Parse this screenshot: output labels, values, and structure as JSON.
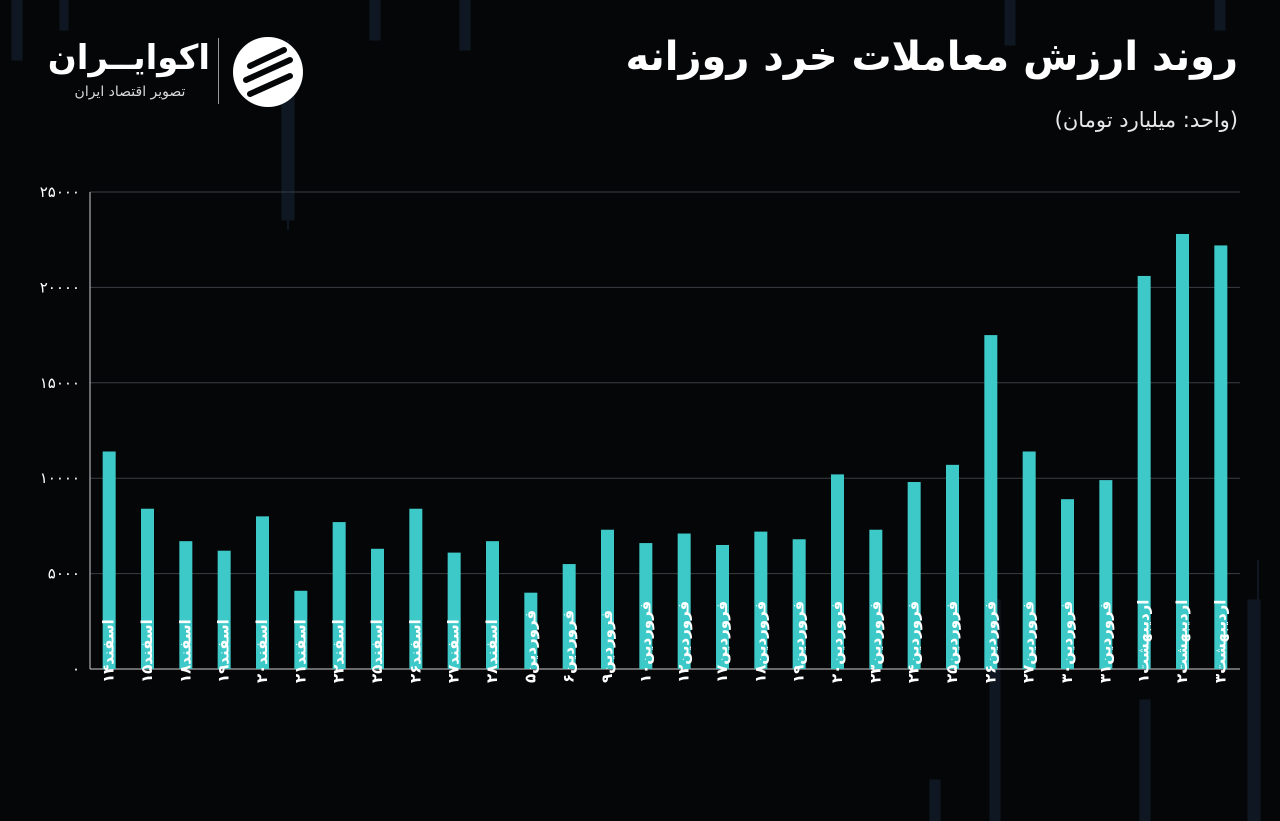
{
  "title": "روند ارزش معاملات خرد روزانه",
  "subtitle": "(واحد: میلیارد تومان)",
  "logo": {
    "name": "اکوایــران",
    "tagline": "تصویر اقتصاد ایران",
    "icon": "ecoiran-logo-icon"
  },
  "colors": {
    "background": "#050608",
    "bar": "#3ec9c9",
    "grid": "#3a3d42",
    "axis": "#cfcfcf"
  },
  "chart_data": {
    "type": "bar",
    "title": "روند ارزش معاملات خرد روزانه",
    "ylabel": "(واحد: میلیارد تومان)",
    "ylim": [
      0,
      25000
    ],
    "yticks": [
      {
        "value": 0,
        "label": "۰"
      },
      {
        "value": 5000,
        "label": "۵۰۰۰"
      },
      {
        "value": 10000,
        "label": "۱۰۰۰۰"
      },
      {
        "value": 15000,
        "label": "۱۵۰۰۰"
      },
      {
        "value": 20000,
        "label": "۲۰۰۰۰"
      },
      {
        "value": 25000,
        "label": "۲۵۰۰۰"
      }
    ],
    "grid": true,
    "categories": [
      "اسفند۱۴",
      "اسفند۱۵",
      "اسفند۱۸",
      "اسفند۱۹",
      "اسفند۲۰",
      "اسفند۲۱",
      "اسفند۲۲",
      "اسفند۲۵",
      "اسفند۲۶",
      "اسفند۲۷",
      "اسفند۲۸",
      "فروردین۵",
      "فروردین۶",
      "فروردین۹",
      "فروردین۱۰",
      "فروردین۱۲",
      "فروردین۱۷",
      "فروردین۱۸",
      "فروردین۱۹",
      "فروردین۲۰",
      "فروردین۲۳",
      "فروردین۲۴",
      "فروردین۲۵",
      "فروردین۲۶",
      "فروردین۲۷",
      "فروردین۳۰",
      "فروردین۳۱",
      "اردیبهشت۱",
      "اردیبهشت۲",
      "اردیبهشت۳"
    ],
    "values": [
      11400,
      8400,
      6700,
      6200,
      8000,
      4100,
      7700,
      6300,
      8400,
      6100,
      6700,
      4000,
      5500,
      7300,
      6600,
      7100,
      6500,
      7200,
      6800,
      10200,
      7300,
      9800,
      10700,
      17500,
      11400,
      8900,
      9900,
      20600,
      22800,
      22200
    ]
  }
}
